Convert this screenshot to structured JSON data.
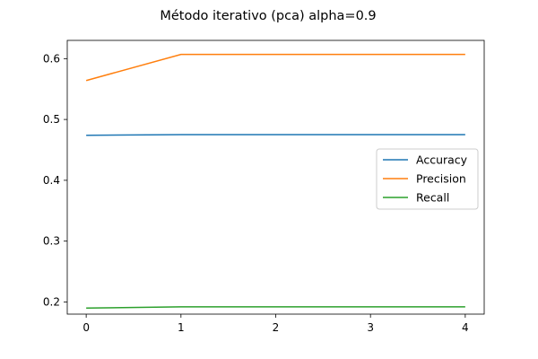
{
  "chart_data": {
    "type": "line",
    "title": "Método iterativo (pca) alpha=0.9",
    "xlabel": "",
    "ylabel": "",
    "x": [
      0,
      1,
      2,
      3,
      4
    ],
    "xticks": [
      "0",
      "1",
      "2",
      "3",
      "4"
    ],
    "yticks": [
      "0.2",
      "0.3",
      "0.4",
      "0.5",
      "0.6"
    ],
    "xlim": [
      -0.2,
      4.2
    ],
    "ylim": [
      0.18,
      0.63
    ],
    "grid": false,
    "legend_position": "center-right",
    "series": [
      {
        "name": "Accuracy",
        "color": "#1f77b4",
        "values": [
          0.474,
          0.475,
          0.475,
          0.475,
          0.475
        ]
      },
      {
        "name": "Precision",
        "color": "#ff7f0e",
        "values": [
          0.564,
          0.607,
          0.607,
          0.607,
          0.607
        ]
      },
      {
        "name": "Recall",
        "color": "#2ca02c",
        "values": [
          0.19,
          0.192,
          0.192,
          0.192,
          0.192
        ]
      }
    ]
  }
}
